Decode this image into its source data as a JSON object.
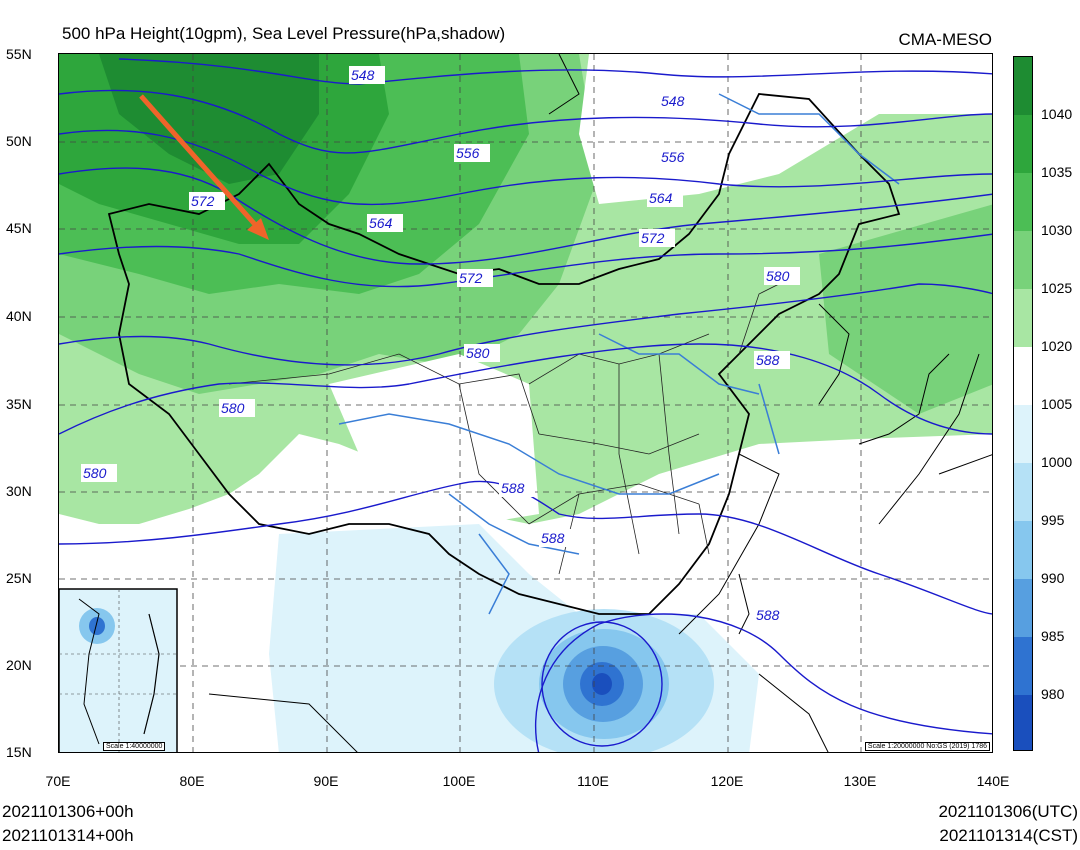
{
  "title": "500 hPa Height(10gpm), Sea Level Pressure(hPa,shadow)",
  "source": "CMA-MESO",
  "lat_labels": [
    "55N",
    "50N",
    "45N",
    "40N",
    "35N",
    "30N",
    "25N",
    "20N",
    "15N"
  ],
  "lon_labels": [
    "70E",
    "80E",
    "90E",
    "100E",
    "110E",
    "120E",
    "130E",
    "140E"
  ],
  "colorbar": {
    "labels": [
      "1040",
      "1035",
      "1030",
      "1025",
      "1020",
      "1005",
      "1000",
      "995",
      "990",
      "985",
      "980"
    ],
    "colors": [
      "#1e8c32",
      "#2ea63c",
      "#4cbe55",
      "#78d27a",
      "#a8e6a3",
      "#ffffff",
      "#ddf3fb",
      "#b5e1f6",
      "#86c7ee",
      "#579fe0",
      "#2f73d1",
      "#1a4fbd"
    ]
  },
  "contour_labels": [
    "548",
    "548",
    "556",
    "556",
    "564",
    "564",
    "572",
    "572",
    "572",
    "580",
    "580",
    "580",
    "580",
    "588",
    "588",
    "588",
    "588"
  ],
  "scale_main": "Scale 1:20000000 No:GS (2019) 1786",
  "scale_inset": "Scale 1:40000000",
  "footer": {
    "left_line1": "2021101306+00h",
    "left_line2": "2021101314+00h",
    "right_line1": "2021101306(UTC)",
    "right_line2": "2021101314(CST)"
  }
}
